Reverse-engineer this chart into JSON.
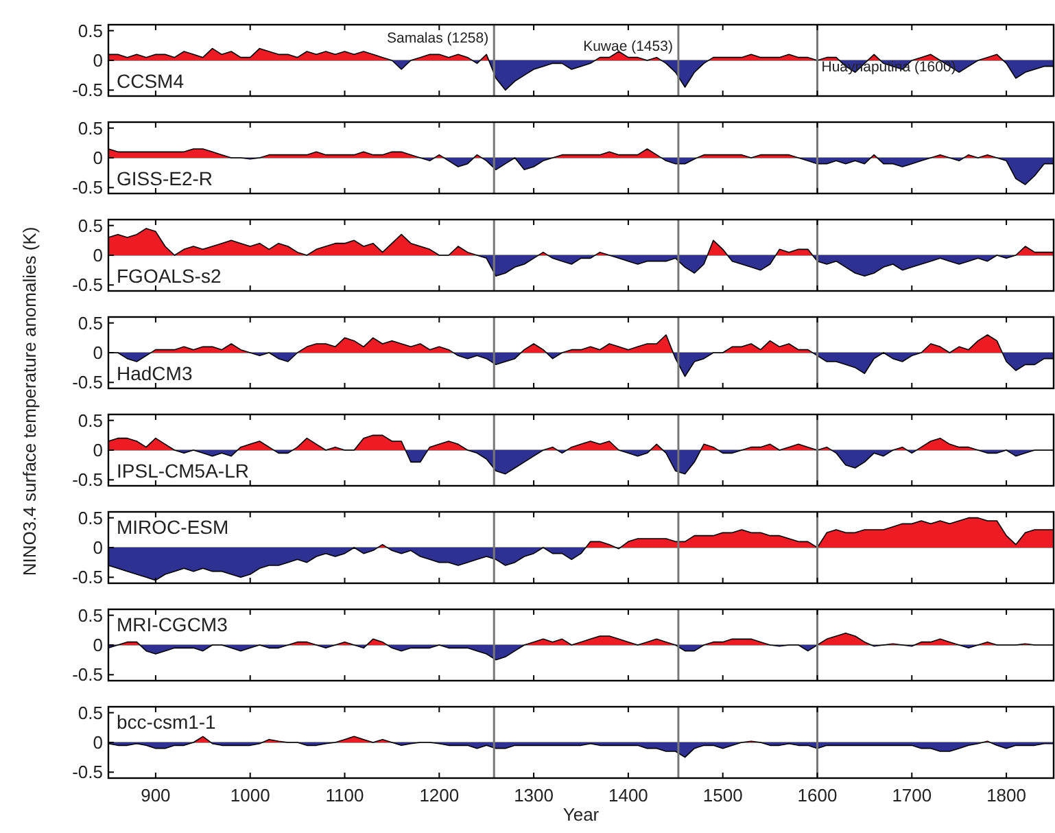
{
  "chart_data": [
    {
      "type": "area",
      "x": [
        850,
        860,
        870,
        880,
        890,
        900,
        910,
        920,
        930,
        940,
        950,
        960,
        970,
        980,
        990,
        1000,
        1010,
        1020,
        1030,
        1040,
        1050,
        1060,
        1070,
        1080,
        1090,
        1100,
        1110,
        1120,
        1130,
        1140,
        1150,
        1160,
        1170,
        1180,
        1190,
        1200,
        1210,
        1220,
        1230,
        1240,
        1250,
        1260,
        1270,
        1280,
        1290,
        1300,
        1310,
        1320,
        1330,
        1340,
        1350,
        1360,
        1370,
        1380,
        1390,
        1400,
        1410,
        1420,
        1430,
        1440,
        1450,
        1460,
        1470,
        1480,
        1490,
        1500,
        1510,
        1520,
        1530,
        1540,
        1550,
        1560,
        1570,
        1580,
        1590,
        1600,
        1610,
        1620,
        1630,
        1640,
        1650,
        1660,
        1670,
        1680,
        1690,
        1700,
        1710,
        1720,
        1730,
        1740,
        1750,
        1760,
        1770,
        1780,
        1790,
        1800,
        1810,
        1820,
        1830,
        1840,
        1850
      ],
      "xlim": [
        850,
        1850
      ],
      "xticks": [
        900,
        1000,
        1100,
        1200,
        1300,
        1400,
        1500,
        1600,
        1700,
        1800
      ],
      "ylim": [
        -0.6,
        0.6
      ],
      "yticks": [
        -0.5,
        0,
        0.5
      ],
      "tick_labels": "y",
      "colors": [
        "#ed1c24",
        "#2e3192"
      ],
      "ref_lines": [
        {
          "axis": "x",
          "value": 1258,
          "label": "Samalas (1258)"
        },
        {
          "axis": "x",
          "value": 1453,
          "label": "Kuwae (1453)"
        },
        {
          "axis": "x",
          "value": 1600,
          "label": "Huaynaputina (1600)"
        }
      ],
      "series": [
        {
          "name": "CCSM4",
          "values": [
            0.1,
            0.1,
            0.05,
            0.1,
            0.05,
            0.1,
            0.1,
            0.05,
            0.15,
            0.1,
            0.05,
            0.2,
            0.1,
            0.15,
            0.05,
            0.05,
            0.2,
            0.15,
            0.1,
            0.1,
            0.05,
            0.15,
            0.1,
            0.15,
            0.1,
            0.15,
            0.1,
            0.15,
            0.1,
            0.05,
            0.0,
            -0.15,
            0.0,
            0.05,
            0.1,
            0.1,
            0.05,
            0.1,
            0.05,
            -0.05,
            0.1,
            -0.3,
            -0.5,
            -0.35,
            -0.25,
            -0.15,
            -0.1,
            -0.05,
            -0.05,
            -0.15,
            -0.1,
            -0.05,
            0.05,
            0.05,
            0.15,
            0.05,
            0.05,
            0.0,
            0.05,
            -0.05,
            -0.2,
            -0.45,
            -0.2,
            -0.05,
            0.05,
            0.05,
            0.05,
            0.05,
            0.1,
            0.05,
            0.05,
            0.05,
            0.1,
            0.05,
            0.05,
            0.0,
            0.05,
            0.05,
            -0.1,
            -0.2,
            -0.05,
            0.1,
            -0.05,
            -0.1,
            -0.15,
            0.0,
            0.05,
            0.1,
            0.0,
            -0.1,
            -0.2,
            -0.1,
            0.0,
            0.05,
            0.1,
            -0.05,
            -0.3,
            -0.2,
            -0.15,
            -0.1,
            -0.1
          ]
        }
      ]
    },
    {
      "type": "area",
      "x": [
        850,
        860,
        870,
        880,
        890,
        900,
        910,
        920,
        930,
        940,
        950,
        960,
        970,
        980,
        990,
        1000,
        1010,
        1020,
        1030,
        1040,
        1050,
        1060,
        1070,
        1080,
        1090,
        1100,
        1110,
        1120,
        1130,
        1140,
        1150,
        1160,
        1170,
        1180,
        1190,
        1200,
        1210,
        1220,
        1230,
        1240,
        1250,
        1260,
        1270,
        1280,
        1290,
        1300,
        1310,
        1320,
        1330,
        1340,
        1350,
        1360,
        1370,
        1380,
        1390,
        1400,
        1410,
        1420,
        1430,
        1440,
        1450,
        1460,
        1470,
        1480,
        1490,
        1500,
        1510,
        1520,
        1530,
        1540,
        1550,
        1560,
        1570,
        1580,
        1590,
        1600,
        1610,
        1620,
        1630,
        1640,
        1650,
        1660,
        1670,
        1680,
        1690,
        1700,
        1710,
        1720,
        1730,
        1740,
        1750,
        1760,
        1770,
        1780,
        1790,
        1800,
        1810,
        1820,
        1830,
        1840,
        1850
      ],
      "xlim": [
        850,
        1850
      ],
      "xticks": [
        900,
        1000,
        1100,
        1200,
        1300,
        1400,
        1500,
        1600,
        1700,
        1800
      ],
      "ylim": [
        -0.6,
        0.6
      ],
      "yticks": [
        -0.5,
        0,
        0.5
      ],
      "tick_labels": "y",
      "colors": [
        "#ed1c24",
        "#2e3192"
      ],
      "ref_lines": [
        {
          "axis": "x",
          "value": 1258
        },
        {
          "axis": "x",
          "value": 1453
        },
        {
          "axis": "x",
          "value": 1600
        }
      ],
      "series": [
        {
          "name": "GISS-E2-R",
          "values": [
            0.15,
            0.1,
            0.1,
            0.1,
            0.1,
            0.1,
            0.1,
            0.1,
            0.1,
            0.15,
            0.15,
            0.1,
            0.05,
            0.0,
            0.0,
            -0.02,
            0.0,
            0.05,
            0.05,
            0.05,
            0.05,
            0.05,
            0.1,
            0.05,
            0.05,
            0.05,
            0.05,
            0.1,
            0.05,
            0.05,
            0.1,
            0.1,
            0.05,
            0.0,
            -0.05,
            0.05,
            -0.05,
            -0.15,
            -0.1,
            0.05,
            -0.05,
            -0.2,
            -0.1,
            0.0,
            -0.2,
            -0.15,
            -0.05,
            0.0,
            0.05,
            0.05,
            0.05,
            0.05,
            0.05,
            0.1,
            0.05,
            0.05,
            0.05,
            0.15,
            0.05,
            -0.05,
            -0.1,
            -0.1,
            -0.02,
            0.05,
            0.05,
            0.05,
            0.05,
            0.05,
            0.0,
            0.05,
            0.05,
            0.05,
            0.05,
            0.0,
            -0.05,
            -0.1,
            -0.1,
            -0.05,
            -0.1,
            -0.05,
            -0.1,
            0.05,
            -0.1,
            -0.1,
            -0.15,
            -0.1,
            -0.05,
            0.0,
            0.05,
            0.0,
            -0.05,
            0.05,
            0.0,
            0.05,
            0.0,
            -0.05,
            -0.35,
            -0.45,
            -0.3,
            -0.1,
            -0.1
          ]
        }
      ]
    },
    {
      "type": "area",
      "x": [
        850,
        860,
        870,
        880,
        890,
        900,
        910,
        920,
        930,
        940,
        950,
        960,
        970,
        980,
        990,
        1000,
        1010,
        1020,
        1030,
        1040,
        1050,
        1060,
        1070,
        1080,
        1090,
        1100,
        1110,
        1120,
        1130,
        1140,
        1150,
        1160,
        1170,
        1180,
        1190,
        1200,
        1210,
        1220,
        1230,
        1240,
        1250,
        1260,
        1270,
        1280,
        1290,
        1300,
        1310,
        1320,
        1330,
        1340,
        1350,
        1360,
        1370,
        1380,
        1390,
        1400,
        1410,
        1420,
        1430,
        1440,
        1450,
        1460,
        1470,
        1480,
        1490,
        1500,
        1510,
        1520,
        1530,
        1540,
        1550,
        1560,
        1570,
        1580,
        1590,
        1600,
        1610,
        1620,
        1630,
        1640,
        1650,
        1660,
        1670,
        1680,
        1690,
        1700,
        1710,
        1720,
        1730,
        1740,
        1750,
        1760,
        1770,
        1780,
        1790,
        1800,
        1810,
        1820,
        1830,
        1840,
        1850
      ],
      "xlim": [
        850,
        1850
      ],
      "xticks": [
        900,
        1000,
        1100,
        1200,
        1300,
        1400,
        1500,
        1600,
        1700,
        1800
      ],
      "ylim": [
        -0.6,
        0.6
      ],
      "yticks": [
        -0.5,
        0,
        0.5
      ],
      "tick_labels": "y",
      "colors": [
        "#ed1c24",
        "#2e3192"
      ],
      "ref_lines": [
        {
          "axis": "x",
          "value": 1258
        },
        {
          "axis": "x",
          "value": 1453
        },
        {
          "axis": "x",
          "value": 1600
        }
      ],
      "series": [
        {
          "name": "FGOALS-s2",
          "values": [
            0.3,
            0.35,
            0.3,
            0.35,
            0.45,
            0.4,
            0.15,
            0.0,
            0.1,
            0.15,
            0.1,
            0.15,
            0.2,
            0.25,
            0.2,
            0.15,
            0.2,
            0.1,
            0.2,
            0.15,
            0.05,
            0.0,
            0.1,
            0.15,
            0.2,
            0.2,
            0.25,
            0.15,
            0.2,
            0.05,
            0.2,
            0.35,
            0.2,
            0.15,
            0.1,
            0.0,
            0.0,
            0.15,
            0.05,
            0.0,
            -0.05,
            -0.35,
            -0.3,
            -0.2,
            -0.15,
            -0.05,
            0.05,
            -0.05,
            -0.1,
            -0.15,
            -0.05,
            -0.05,
            0.05,
            0.0,
            -0.05,
            -0.1,
            -0.15,
            -0.1,
            -0.1,
            -0.1,
            -0.05,
            -0.2,
            -0.3,
            -0.15,
            0.25,
            0.1,
            -0.1,
            -0.15,
            -0.2,
            -0.25,
            -0.15,
            0.1,
            0.05,
            0.1,
            0.1,
            -0.1,
            -0.15,
            -0.1,
            -0.2,
            -0.3,
            -0.35,
            -0.3,
            -0.2,
            -0.15,
            -0.25,
            -0.2,
            -0.15,
            -0.1,
            -0.05,
            -0.1,
            -0.15,
            -0.1,
            -0.05,
            -0.1,
            0.0,
            -0.05,
            0.0,
            0.15,
            0.05,
            0.05,
            0.05
          ]
        }
      ]
    },
    {
      "type": "area",
      "x": [
        850,
        860,
        870,
        880,
        890,
        900,
        910,
        920,
        930,
        940,
        950,
        960,
        970,
        980,
        990,
        1000,
        1010,
        1020,
        1030,
        1040,
        1050,
        1060,
        1070,
        1080,
        1090,
        1100,
        1110,
        1120,
        1130,
        1140,
        1150,
        1160,
        1170,
        1180,
        1190,
        1200,
        1210,
        1220,
        1230,
        1240,
        1250,
        1260,
        1270,
        1280,
        1290,
        1300,
        1310,
        1320,
        1330,
        1340,
        1350,
        1360,
        1370,
        1380,
        1390,
        1400,
        1410,
        1420,
        1430,
        1440,
        1450,
        1460,
        1470,
        1480,
        1490,
        1500,
        1510,
        1520,
        1530,
        1540,
        1550,
        1560,
        1570,
        1580,
        1590,
        1600,
        1610,
        1620,
        1630,
        1640,
        1650,
        1660,
        1670,
        1680,
        1690,
        1700,
        1710,
        1720,
        1730,
        1740,
        1750,
        1760,
        1770,
        1780,
        1790,
        1800,
        1810,
        1820,
        1830,
        1840,
        1850
      ],
      "xlim": [
        850,
        1850
      ],
      "xticks": [
        900,
        1000,
        1100,
        1200,
        1300,
        1400,
        1500,
        1600,
        1700,
        1800
      ],
      "ylim": [
        -0.6,
        0.6
      ],
      "yticks": [
        -0.5,
        0,
        0.5
      ],
      "tick_labels": "y",
      "colors": [
        "#ed1c24",
        "#2e3192"
      ],
      "ref_lines": [
        {
          "axis": "x",
          "value": 1258
        },
        {
          "axis": "x",
          "value": 1453
        },
        {
          "axis": "x",
          "value": 1600
        }
      ],
      "ylabel": "NINO3.4 surface temperature anomalies (K)",
      "series": [
        {
          "name": "HadCM3",
          "values": [
            0.0,
            0.0,
            -0.1,
            -0.15,
            -0.05,
            0.05,
            0.05,
            0.05,
            0.1,
            0.05,
            0.1,
            0.1,
            0.05,
            0.15,
            0.05,
            0.0,
            -0.05,
            0.0,
            -0.1,
            -0.15,
            0.0,
            0.1,
            0.15,
            0.15,
            0.1,
            0.25,
            0.2,
            0.1,
            0.25,
            0.15,
            0.2,
            0.15,
            0.1,
            0.15,
            0.05,
            0.1,
            0.05,
            -0.05,
            -0.1,
            -0.05,
            -0.1,
            -0.2,
            -0.15,
            -0.1,
            0.05,
            0.15,
            0.05,
            -0.1,
            0.0,
            0.05,
            0.05,
            0.1,
            0.05,
            0.15,
            0.1,
            0.05,
            0.1,
            0.15,
            0.15,
            0.3,
            -0.1,
            -0.4,
            -0.15,
            -0.1,
            0.0,
            0.0,
            0.1,
            0.1,
            0.15,
            0.05,
            0.2,
            0.1,
            0.15,
            0.05,
            0.05,
            -0.05,
            -0.15,
            -0.15,
            -0.2,
            -0.25,
            -0.35,
            -0.1,
            0.0,
            -0.1,
            -0.15,
            -0.05,
            0.0,
            0.15,
            0.1,
            0.0,
            0.1,
            0.05,
            0.2,
            0.3,
            0.2,
            -0.15,
            -0.3,
            -0.2,
            -0.2,
            -0.1,
            -0.1
          ]
        }
      ]
    },
    {
      "type": "area",
      "x": [
        850,
        860,
        870,
        880,
        890,
        900,
        910,
        920,
        930,
        940,
        950,
        960,
        970,
        980,
        990,
        1000,
        1010,
        1020,
        1030,
        1040,
        1050,
        1060,
        1070,
        1080,
        1090,
        1100,
        1110,
        1120,
        1130,
        1140,
        1150,
        1160,
        1170,
        1180,
        1190,
        1200,
        1210,
        1220,
        1230,
        1240,
        1250,
        1260,
        1270,
        1280,
        1290,
        1300,
        1310,
        1320,
        1330,
        1340,
        1350,
        1360,
        1370,
        1380,
        1390,
        1400,
        1410,
        1420,
        1430,
        1440,
        1450,
        1460,
        1470,
        1480,
        1490,
        1500,
        1510,
        1520,
        1530,
        1540,
        1550,
        1560,
        1570,
        1580,
        1590,
        1600,
        1610,
        1620,
        1630,
        1640,
        1650,
        1660,
        1670,
        1680,
        1690,
        1700,
        1710,
        1720,
        1730,
        1740,
        1750,
        1760,
        1770,
        1780,
        1790,
        1800,
        1810,
        1820,
        1830,
        1840,
        1850
      ],
      "xlim": [
        850,
        1850
      ],
      "xticks": [
        900,
        1000,
        1100,
        1200,
        1300,
        1400,
        1500,
        1600,
        1700,
        1800
      ],
      "ylim": [
        -0.6,
        0.6
      ],
      "yticks": [
        -0.5,
        0,
        0.5
      ],
      "tick_labels": "y",
      "colors": [
        "#ed1c24",
        "#2e3192"
      ],
      "ref_lines": [
        {
          "axis": "x",
          "value": 1258
        },
        {
          "axis": "x",
          "value": 1453
        },
        {
          "axis": "x",
          "value": 1600
        }
      ],
      "series": [
        {
          "name": "IPSL-CM5A-LR",
          "values": [
            0.15,
            0.2,
            0.2,
            0.15,
            0.05,
            0.2,
            0.1,
            0.0,
            -0.05,
            0.0,
            -0.05,
            -0.1,
            -0.05,
            -0.1,
            0.05,
            0.1,
            0.15,
            0.05,
            -0.05,
            -0.05,
            0.05,
            0.2,
            0.1,
            0.0,
            0.05,
            0.0,
            0.0,
            0.2,
            0.25,
            0.25,
            0.15,
            0.15,
            -0.2,
            -0.2,
            0.05,
            0.1,
            0.15,
            0.1,
            0.0,
            -0.05,
            -0.15,
            -0.35,
            -0.4,
            -0.3,
            -0.2,
            -0.1,
            0.0,
            0.05,
            -0.05,
            0.05,
            0.1,
            0.15,
            0.1,
            0.15,
            0.0,
            -0.05,
            -0.1,
            -0.05,
            0.1,
            -0.05,
            -0.35,
            -0.4,
            -0.2,
            0.1,
            0.05,
            -0.05,
            -0.05,
            0.0,
            0.05,
            0.05,
            0.1,
            0.0,
            0.05,
            0.1,
            0.05,
            0.0,
            0.05,
            -0.05,
            -0.25,
            -0.3,
            -0.2,
            -0.05,
            -0.1,
            0.0,
            0.05,
            -0.05,
            0.05,
            0.15,
            0.2,
            0.1,
            0.05,
            0.05,
            0.0,
            -0.05,
            -0.05,
            0.0,
            -0.1,
            -0.05,
            0.0,
            0.0,
            0.0
          ]
        }
      ]
    },
    {
      "type": "area",
      "x": [
        850,
        860,
        870,
        880,
        890,
        900,
        910,
        920,
        930,
        940,
        950,
        960,
        970,
        980,
        990,
        1000,
        1010,
        1020,
        1030,
        1040,
        1050,
        1060,
        1070,
        1080,
        1090,
        1100,
        1110,
        1120,
        1130,
        1140,
        1150,
        1160,
        1170,
        1180,
        1190,
        1200,
        1210,
        1220,
        1230,
        1240,
        1250,
        1260,
        1270,
        1280,
        1290,
        1300,
        1310,
        1320,
        1330,
        1340,
        1350,
        1360,
        1370,
        1380,
        1390,
        1400,
        1410,
        1420,
        1430,
        1440,
        1450,
        1460,
        1470,
        1480,
        1490,
        1500,
        1510,
        1520,
        1530,
        1540,
        1550,
        1560,
        1570,
        1580,
        1590,
        1600,
        1610,
        1620,
        1630,
        1640,
        1650,
        1660,
        1670,
        1680,
        1690,
        1700,
        1710,
        1720,
        1730,
        1740,
        1750,
        1760,
        1770,
        1780,
        1790,
        1800,
        1810,
        1820,
        1830,
        1840,
        1850
      ],
      "xlim": [
        850,
        1850
      ],
      "xticks": [
        900,
        1000,
        1100,
        1200,
        1300,
        1400,
        1500,
        1600,
        1700,
        1800
      ],
      "ylim": [
        -0.6,
        0.6
      ],
      "yticks": [
        -0.5,
        0,
        0.5
      ],
      "tick_labels": "y",
      "colors": [
        "#ed1c24",
        "#2e3192"
      ],
      "ref_lines": [
        {
          "axis": "x",
          "value": 1258
        },
        {
          "axis": "x",
          "value": 1453
        },
        {
          "axis": "x",
          "value": 1600
        }
      ],
      "series": [
        {
          "name": "MIROC-ESM",
          "values": [
            -0.3,
            -0.35,
            -0.4,
            -0.45,
            -0.5,
            -0.55,
            -0.45,
            -0.4,
            -0.35,
            -0.4,
            -0.35,
            -0.4,
            -0.4,
            -0.45,
            -0.5,
            -0.45,
            -0.35,
            -0.3,
            -0.3,
            -0.25,
            -0.2,
            -0.25,
            -0.15,
            -0.1,
            -0.15,
            -0.1,
            0.0,
            -0.1,
            -0.05,
            0.05,
            -0.05,
            -0.1,
            -0.05,
            -0.15,
            -0.2,
            -0.25,
            -0.25,
            -0.3,
            -0.25,
            -0.2,
            -0.15,
            -0.2,
            -0.3,
            -0.25,
            -0.15,
            -0.1,
            0.0,
            -0.1,
            -0.1,
            -0.2,
            -0.1,
            0.1,
            0.1,
            0.05,
            -0.02,
            0.1,
            0.15,
            0.15,
            0.15,
            0.15,
            0.1,
            0.1,
            0.2,
            0.2,
            0.2,
            0.25,
            0.25,
            0.3,
            0.25,
            0.25,
            0.2,
            0.2,
            0.15,
            0.1,
            0.1,
            0.0,
            0.25,
            0.3,
            0.25,
            0.25,
            0.3,
            0.3,
            0.3,
            0.35,
            0.4,
            0.4,
            0.45,
            0.4,
            0.45,
            0.4,
            0.45,
            0.5,
            0.5,
            0.45,
            0.45,
            0.2,
            0.05,
            0.25,
            0.3,
            0.3,
            0.3
          ]
        }
      ]
    },
    {
      "type": "area",
      "x": [
        850,
        860,
        870,
        880,
        890,
        900,
        910,
        920,
        930,
        940,
        950,
        960,
        970,
        980,
        990,
        1000,
        1010,
        1020,
        1030,
        1040,
        1050,
        1060,
        1070,
        1080,
        1090,
        1100,
        1110,
        1120,
        1130,
        1140,
        1150,
        1160,
        1170,
        1180,
        1190,
        1200,
        1210,
        1220,
        1230,
        1240,
        1250,
        1260,
        1270,
        1280,
        1290,
        1300,
        1310,
        1320,
        1330,
        1340,
        1350,
        1360,
        1370,
        1380,
        1390,
        1400,
        1410,
        1420,
        1430,
        1440,
        1450,
        1460,
        1470,
        1480,
        1490,
        1500,
        1510,
        1520,
        1530,
        1540,
        1550,
        1560,
        1570,
        1580,
        1590,
        1600,
        1610,
        1620,
        1630,
        1640,
        1650,
        1660,
        1670,
        1680,
        1690,
        1700,
        1710,
        1720,
        1730,
        1740,
        1750,
        1760,
        1770,
        1780,
        1790,
        1800,
        1810,
        1820,
        1830,
        1840,
        1850
      ],
      "xlim": [
        850,
        1850
      ],
      "xticks": [
        900,
        1000,
        1100,
        1200,
        1300,
        1400,
        1500,
        1600,
        1700,
        1800
      ],
      "ylim": [
        -0.6,
        0.6
      ],
      "yticks": [
        -0.5,
        0,
        0.5
      ],
      "tick_labels": "y",
      "colors": [
        "#ed1c24",
        "#2e3192"
      ],
      "ref_lines": [
        {
          "axis": "x",
          "value": 1258
        },
        {
          "axis": "x",
          "value": 1453
        },
        {
          "axis": "x",
          "value": 1600
        }
      ],
      "series": [
        {
          "name": "MRI-CGCM3",
          "values": [
            -0.05,
            0.0,
            0.05,
            0.05,
            -0.1,
            -0.15,
            -0.1,
            -0.05,
            -0.05,
            -0.05,
            -0.1,
            0.0,
            0.0,
            -0.05,
            -0.1,
            -0.05,
            0.0,
            -0.05,
            -0.05,
            0.0,
            0.05,
            0.05,
            0.0,
            -0.05,
            0.0,
            0.05,
            0.0,
            -0.05,
            0.1,
            0.05,
            -0.05,
            -0.1,
            -0.05,
            -0.05,
            -0.05,
            0.0,
            -0.05,
            -0.05,
            -0.05,
            -0.1,
            -0.15,
            -0.25,
            -0.2,
            -0.1,
            0.0,
            0.05,
            0.1,
            0.05,
            0.1,
            0.0,
            0.05,
            0.1,
            0.15,
            0.15,
            0.1,
            0.05,
            0.0,
            0.05,
            0.1,
            0.05,
            0.0,
            -0.1,
            -0.1,
            0.0,
            0.05,
            0.05,
            0.1,
            0.1,
            0.1,
            0.05,
            0.0,
            -0.02,
            0.0,
            0.0,
            -0.1,
            0.0,
            0.1,
            0.15,
            0.2,
            0.15,
            0.05,
            -0.02,
            0.0,
            0.02,
            0.0,
            -0.02,
            0.05,
            0.05,
            0.1,
            0.05,
            0.0,
            -0.05,
            0.0,
            0.05,
            0.0,
            0.0,
            0.0,
            0.02,
            0.0,
            0.0,
            0.0
          ]
        }
      ]
    },
    {
      "type": "area",
      "xlabel": "Year",
      "x": [
        850,
        860,
        870,
        880,
        890,
        900,
        910,
        920,
        930,
        940,
        950,
        960,
        970,
        980,
        990,
        1000,
        1010,
        1020,
        1030,
        1040,
        1050,
        1060,
        1070,
        1080,
        1090,
        1100,
        1110,
        1120,
        1130,
        1140,
        1150,
        1160,
        1170,
        1180,
        1190,
        1200,
        1210,
        1220,
        1230,
        1240,
        1250,
        1260,
        1270,
        1280,
        1290,
        1300,
        1310,
        1320,
        1330,
        1340,
        1350,
        1360,
        1370,
        1380,
        1390,
        1400,
        1410,
        1420,
        1430,
        1440,
        1450,
        1460,
        1470,
        1480,
        1490,
        1500,
        1510,
        1520,
        1530,
        1540,
        1550,
        1560,
        1570,
        1580,
        1590,
        1600,
        1610,
        1620,
        1630,
        1640,
        1650,
        1660,
        1670,
        1680,
        1690,
        1700,
        1710,
        1720,
        1730,
        1740,
        1750,
        1760,
        1770,
        1780,
        1790,
        1800,
        1810,
        1820,
        1830,
        1840,
        1850
      ],
      "xlim": [
        850,
        1850
      ],
      "xticks": [
        900,
        1000,
        1100,
        1200,
        1300,
        1400,
        1500,
        1600,
        1700,
        1800
      ],
      "ylim": [
        -0.6,
        0.6
      ],
      "yticks": [
        -0.5,
        0,
        0.5
      ],
      "colors": [
        "#ed1c24",
        "#2e3192"
      ],
      "ref_lines": [
        {
          "axis": "x",
          "value": 1258
        },
        {
          "axis": "x",
          "value": 1453
        },
        {
          "axis": "x",
          "value": 1600
        }
      ],
      "series": [
        {
          "name": "bcc-csm1-1",
          "values": [
            -0.02,
            -0.05,
            -0.05,
            -0.02,
            -0.05,
            -0.1,
            -0.1,
            -0.05,
            -0.05,
            0.0,
            0.1,
            -0.02,
            -0.05,
            -0.05,
            -0.05,
            -0.05,
            -0.02,
            0.05,
            0.02,
            0.0,
            0.0,
            -0.05,
            -0.05,
            -0.02,
            0.0,
            0.05,
            0.1,
            0.05,
            0.0,
            0.05,
            0.0,
            -0.05,
            -0.02,
            0.0,
            0.0,
            -0.02,
            -0.05,
            -0.05,
            -0.05,
            -0.1,
            -0.05,
            -0.1,
            -0.1,
            -0.05,
            -0.05,
            -0.05,
            -0.05,
            -0.05,
            -0.05,
            -0.05,
            -0.05,
            -0.02,
            -0.05,
            -0.05,
            -0.05,
            -0.05,
            -0.05,
            -0.1,
            -0.1,
            -0.15,
            -0.15,
            -0.25,
            -0.1,
            -0.05,
            -0.05,
            -0.1,
            -0.05,
            0.0,
            0.02,
            0.0,
            -0.05,
            -0.05,
            -0.02,
            -0.05,
            -0.05,
            -0.1,
            -0.05,
            -0.05,
            -0.05,
            -0.05,
            -0.05,
            -0.05,
            -0.05,
            -0.05,
            -0.05,
            -0.05,
            -0.1,
            -0.1,
            -0.15,
            -0.15,
            -0.1,
            -0.05,
            -0.02,
            0.02,
            -0.05,
            -0.1,
            -0.05,
            -0.05,
            -0.05,
            -0.02,
            -0.02
          ]
        }
      ]
    }
  ]
}
